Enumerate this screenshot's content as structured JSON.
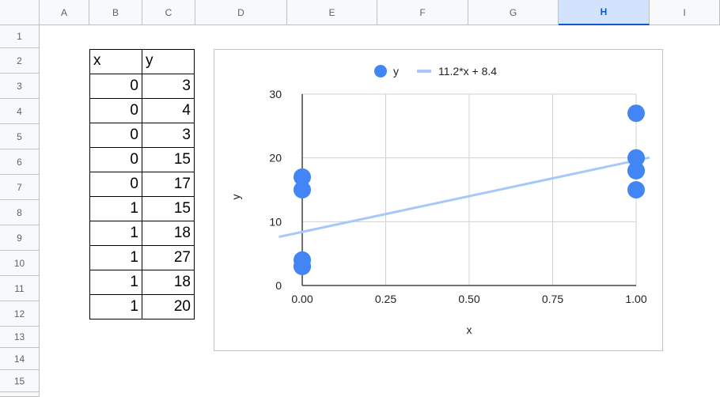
{
  "columns": [
    "A",
    "B",
    "C",
    "D",
    "E",
    "F",
    "G",
    "H",
    "I"
  ],
  "selected_column": "H",
  "rows": [
    "1",
    "2",
    "3",
    "4",
    "5",
    "6",
    "7",
    "8",
    "9",
    "10",
    "11",
    "12",
    "13",
    "14",
    "15"
  ],
  "table": {
    "headers": [
      "x",
      "y"
    ],
    "rows": [
      [
        "0",
        "3"
      ],
      [
        "0",
        "4"
      ],
      [
        "0",
        "3"
      ],
      [
        "0",
        "15"
      ],
      [
        "0",
        "17"
      ],
      [
        "1",
        "15"
      ],
      [
        "1",
        "18"
      ],
      [
        "1",
        "27"
      ],
      [
        "1",
        "18"
      ],
      [
        "1",
        "20"
      ]
    ]
  },
  "chart_data": {
    "type": "scatter",
    "xlabel": "x",
    "ylabel": "y",
    "xlim": [
      0,
      1
    ],
    "ylim": [
      0,
      30
    ],
    "x_ticks": [
      "0.00",
      "0.25",
      "0.50",
      "0.75",
      "1.00"
    ],
    "y_ticks": [
      "0",
      "10",
      "20",
      "30"
    ],
    "grid": true,
    "legend_position": "top",
    "series": [
      {
        "name": "y",
        "x": [
          0,
          0,
          0,
          0,
          0,
          1,
          1,
          1,
          1,
          1
        ],
        "y": [
          3,
          4,
          3,
          15,
          17,
          15,
          18,
          27,
          18,
          20
        ],
        "color": "#4285f4"
      }
    ],
    "trendline": {
      "name": "11.2*x + 8.4",
      "slope": 11.2,
      "intercept": 8.4,
      "color": "#a8c7fa"
    }
  }
}
